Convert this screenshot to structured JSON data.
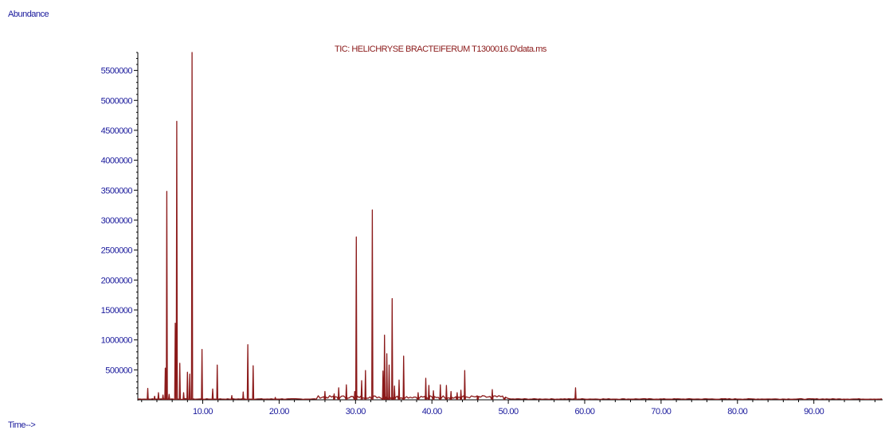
{
  "colors": {
    "axis_text": "#1a1a9c",
    "trace": "#8b1a1a",
    "axis_line": "#000000"
  },
  "chart_data": {
    "type": "line",
    "title": "TIC: HELICHRYSE BRACTEIFERUM T1300016.D\\data.ms",
    "xlabel": "Time-->",
    "ylabel": "Abundance",
    "xlim": [
      1.5,
      99
    ],
    "ylim": [
      0,
      5800000
    ],
    "x_ticks": [
      "10.00",
      "20.00",
      "30.00",
      "40.00",
      "50.00",
      "60.00",
      "70.00",
      "80.00",
      "90.00"
    ],
    "y_ticks": [
      "500000",
      "1000000",
      "1500000",
      "2000000",
      "2500000",
      "3000000",
      "3500000",
      "4000000",
      "4500000",
      "5000000",
      "5500000"
    ],
    "grid": false,
    "legend": "none",
    "series": [
      {
        "peaks": [
          [
            2.8,
            190000
          ],
          [
            3.7,
            60000
          ],
          [
            4.2,
            120000
          ],
          [
            4.8,
            80000
          ],
          [
            5.1,
            530000
          ],
          [
            5.3,
            3480000
          ],
          [
            5.6,
            90000
          ],
          [
            6.4,
            1280000
          ],
          [
            6.6,
            4650000
          ],
          [
            7.0,
            610000
          ],
          [
            7.5,
            120000
          ],
          [
            8.0,
            460000
          ],
          [
            8.3,
            430000
          ],
          [
            8.6,
            5800000
          ],
          [
            9.9,
            840000
          ],
          [
            11.3,
            180000
          ],
          [
            11.9,
            580000
          ],
          [
            13.8,
            70000
          ],
          [
            15.3,
            130000
          ],
          [
            15.9,
            920000
          ],
          [
            16.6,
            570000
          ],
          [
            19.5,
            40000
          ],
          [
            26.0,
            140000
          ],
          [
            27.2,
            100000
          ],
          [
            27.8,
            200000
          ],
          [
            28.8,
            250000
          ],
          [
            29.9,
            140000
          ],
          [
            30.1,
            2720000
          ],
          [
            30.8,
            320000
          ],
          [
            31.3,
            490000
          ],
          [
            32.2,
            3170000
          ],
          [
            33.6,
            480000
          ],
          [
            33.8,
            1080000
          ],
          [
            34.1,
            770000
          ],
          [
            34.4,
            580000
          ],
          [
            34.8,
            1690000
          ],
          [
            35.1,
            230000
          ],
          [
            35.7,
            330000
          ],
          [
            36.3,
            730000
          ],
          [
            38.2,
            120000
          ],
          [
            39.2,
            360000
          ],
          [
            39.6,
            240000
          ],
          [
            40.2,
            150000
          ],
          [
            41.1,
            250000
          ],
          [
            41.9,
            240000
          ],
          [
            42.5,
            140000
          ],
          [
            43.3,
            120000
          ],
          [
            43.8,
            160000
          ],
          [
            44.3,
            490000
          ],
          [
            46.0,
            60000
          ],
          [
            47.9,
            170000
          ],
          [
            49.5,
            30000
          ],
          [
            58.8,
            200000
          ]
        ]
      }
    ]
  }
}
